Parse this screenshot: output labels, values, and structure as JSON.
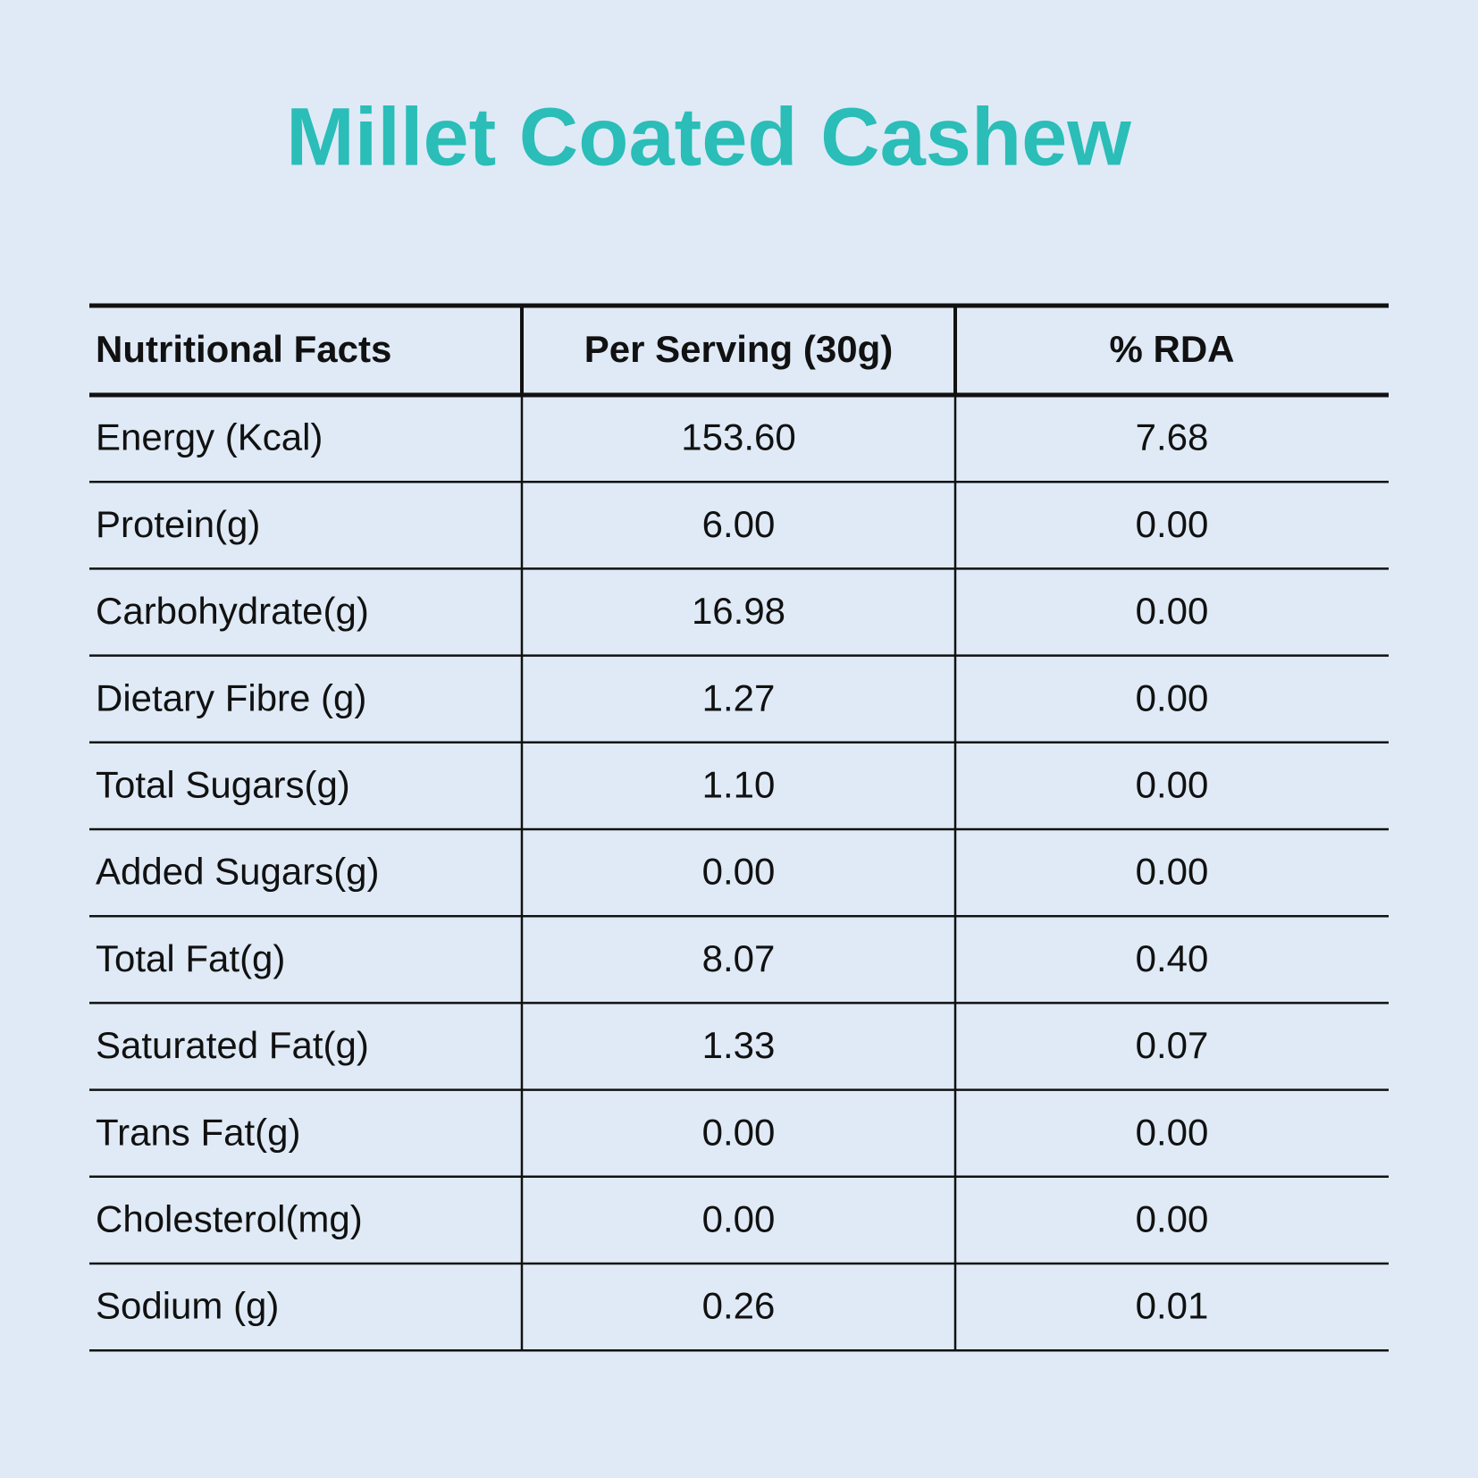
{
  "title": "Millet Coated Cashew",
  "table": {
    "header": [
      "Nutritional Facts",
      "Per Serving (30g)",
      "% RDA"
    ],
    "rows": [
      [
        "Energy (Kcal)",
        "153.60",
        "7.68"
      ],
      [
        "Protein(g)",
        "6.00",
        "0.00"
      ],
      [
        "Carbohydrate(g)",
        "16.98",
        "0.00"
      ],
      [
        "Dietary Fibre (g)",
        "1.27",
        "0.00"
      ],
      [
        "Total Sugars(g)",
        "1.10",
        "0.00"
      ],
      [
        "Added Sugars(g)",
        "0.00",
        "0.00"
      ],
      [
        "Total Fat(g)",
        "8.07",
        "0.40"
      ],
      [
        "Saturated Fat(g)",
        "1.33",
        "0.07"
      ],
      [
        "Trans Fat(g)",
        "0.00",
        "0.00"
      ],
      [
        "Cholesterol(mg)",
        "0.00",
        "0.00"
      ],
      [
        "Sodium (g)",
        "0.26",
        "0.01"
      ]
    ]
  }
}
